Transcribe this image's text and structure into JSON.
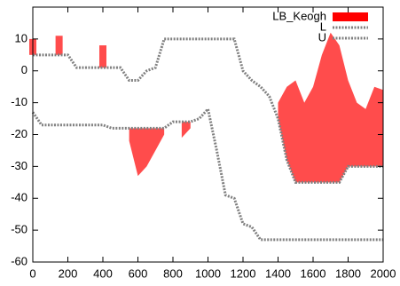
{
  "chart_data": {
    "type": "line",
    "x": [
      0,
      50,
      100,
      150,
      200,
      250,
      300,
      350,
      400,
      450,
      500,
      550,
      600,
      650,
      700,
      750,
      800,
      850,
      900,
      950,
      1000,
      1050,
      1100,
      1150,
      1200,
      1250,
      1300,
      1350,
      1400,
      1450,
      1500,
      1550,
      1600,
      1650,
      1700,
      1750,
      1800,
      1850,
      1900,
      1950,
      2000
    ],
    "series": [
      {
        "name": "LB_Keogh",
        "color": "#ff0000",
        "fill": true,
        "values": [
          10,
          null,
          null,
          11,
          null,
          null,
          null,
          null,
          8,
          null,
          null,
          -22,
          -33,
          -30,
          -25,
          -20,
          null,
          -21,
          -18,
          null,
          null,
          null,
          null,
          null,
          null,
          null,
          null,
          null,
          -10,
          -5,
          -3,
          -10,
          -5,
          5,
          12,
          8,
          -3,
          -10,
          -12,
          -5,
          -6
        ]
      },
      {
        "name": "L",
        "color": "#808080",
        "dashed": true,
        "values": [
          -13,
          -17,
          -17,
          -17,
          -17,
          -17,
          -17,
          -17,
          -17,
          -18,
          -18,
          -18,
          -18,
          -18,
          -18,
          -18,
          -16,
          -16,
          -16,
          -15,
          -12,
          -25,
          -39,
          -40,
          -48,
          -49,
          -53,
          -53,
          -53,
          -53,
          -53,
          -53,
          -53,
          -53,
          -53,
          -53,
          -53,
          -53,
          -53,
          -53,
          -53
        ]
      },
      {
        "name": "U",
        "color": "#808080",
        "dashed": true,
        "values": [
          5,
          5,
          5,
          5,
          5,
          1,
          1,
          1,
          1,
          1,
          1,
          -3,
          -3,
          0,
          1,
          10,
          10,
          10,
          10,
          10,
          10,
          10,
          10,
          10,
          0,
          -3,
          -5,
          -8,
          -15,
          -28,
          -35,
          -35,
          -35,
          -35,
          -35,
          -35,
          -30,
          -30,
          -30,
          -30,
          -30
        ]
      }
    ],
    "xlim": [
      0,
      2000
    ],
    "xticks": [
      0,
      200,
      400,
      600,
      800,
      1000,
      1200,
      1400,
      1600,
      1800,
      2000
    ],
    "ylim": [
      -60,
      20
    ],
    "yticks": [
      -60,
      -50,
      -40,
      -30,
      -20,
      -10,
      0,
      10
    ],
    "legend": "top-right"
  }
}
